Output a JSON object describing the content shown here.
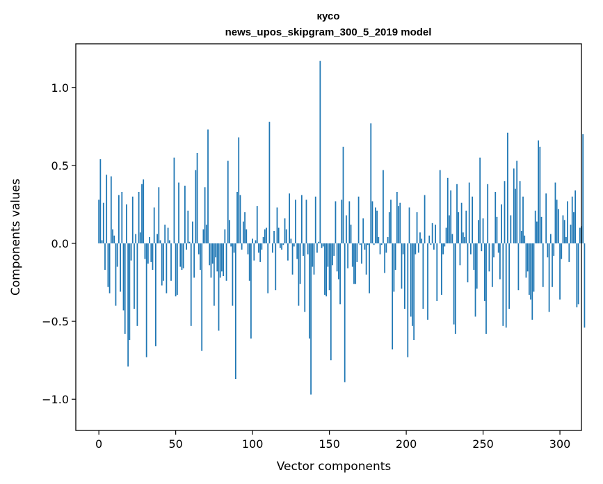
{
  "chart_data": {
    "type": "bar",
    "title": "кусо",
    "subtitle": "news_upos_skipgram_300_5_2019 model",
    "xlabel": "Vector components",
    "ylabel": "Components values",
    "xlim": [
      -15,
      314
    ],
    "ylim": [
      -1.2,
      1.28
    ],
    "xticks": [
      0,
      50,
      100,
      150,
      200,
      250,
      300
    ],
    "xtick_labels": [
      "0",
      "50",
      "100",
      "150",
      "200",
      "250",
      "300"
    ],
    "yticks": [
      -1.0,
      -0.5,
      0.0,
      0.5,
      1.0
    ],
    "ytick_labels": [
      "−1.0",
      "−0.5",
      "0.0",
      "0.5",
      "1.0"
    ],
    "bar_color": "#1f77b4",
    "grid": false,
    "values": [
      0.28,
      0.54,
      0.02,
      0.26,
      -0.17,
      0.44,
      -0.28,
      -0.32,
      0.43,
      0.09,
      0.05,
      -0.4,
      -0.15,
      0.31,
      -0.31,
      0.33,
      -0.43,
      -0.58,
      0.25,
      -0.79,
      -0.62,
      -0.11,
      0.3,
      -0.42,
      0.06,
      -0.53,
      0.33,
      0.07,
      0.38,
      0.41,
      -0.1,
      -0.73,
      -0.13,
      0.04,
      -0.12,
      -0.17,
      0.23,
      -0.66,
      0.06,
      0.36,
      0.02,
      -0.27,
      -0.24,
      0.12,
      -0.32,
      0.1,
      0.02,
      -0.24,
      0.0,
      0.55,
      -0.34,
      -0.33,
      0.39,
      -0.15,
      -0.17,
      -0.16,
      0.37,
      -0.04,
      0.21,
      0.01,
      -0.53,
      0.14,
      -0.22,
      0.47,
      0.58,
      -0.07,
      -0.17,
      -0.69,
      0.09,
      0.36,
      0.12,
      0.73,
      -0.14,
      -0.22,
      -0.13,
      -0.4,
      -0.09,
      -0.18,
      -0.56,
      -0.22,
      -0.18,
      -0.21,
      0.09,
      -0.24,
      0.53,
      0.15,
      -0.02,
      -0.4,
      -0.06,
      -0.87,
      0.33,
      0.68,
      0.31,
      -0.04,
      0.14,
      0.2,
      0.09,
      -0.07,
      -0.24,
      -0.61,
      0.03,
      -0.11,
      0.02,
      0.24,
      -0.06,
      -0.12,
      -0.04,
      0.04,
      0.09,
      0.1,
      -0.32,
      0.78,
      0.0,
      -0.06,
      0.08,
      -0.3,
      0.23,
      0.1,
      -0.03,
      -0.04,
      -0.01,
      0.16,
      0.09,
      -0.11,
      0.32,
      0.03,
      -0.2,
      -0.02,
      0.28,
      -0.1,
      -0.4,
      -0.26,
      0.31,
      -0.08,
      -0.44,
      0.28,
      -0.07,
      -0.61,
      -0.97,
      -0.15,
      -0.2,
      0.3,
      -0.06,
      0.01,
      1.17,
      -0.03,
      -0.02,
      -0.33,
      -0.34,
      -0.15,
      -0.3,
      -0.75,
      -0.14,
      -0.08,
      0.27,
      -0.18,
      -0.23,
      -0.39,
      0.28,
      0.62,
      -0.89,
      0.18,
      -0.16,
      0.27,
      0.12,
      -0.15,
      -0.26,
      -0.26,
      -0.12,
      0.3,
      -0.01,
      -0.13,
      0.16,
      -0.04,
      -0.2,
      -0.01,
      -0.32,
      0.77,
      0.27,
      -0.01,
      0.23,
      0.21,
      0.04,
      -0.07,
      -0.01,
      0.47,
      -0.19,
      -0.06,
      0.04,
      0.2,
      0.28,
      -0.68,
      -0.31,
      -0.17,
      0.33,
      0.24,
      0.26,
      -0.29,
      -0.07,
      -0.42,
      0.0,
      -0.73,
      0.23,
      -0.47,
      -0.53,
      -0.62,
      -0.07,
      0.2,
      -0.06,
      0.07,
      0.03,
      -0.42,
      0.31,
      0.0,
      -0.49,
      0.05,
      -0.01,
      0.13,
      -0.04,
      0.12,
      -0.37,
      0.0,
      0.47,
      -0.33,
      -0.07,
      -0.02,
      0.1,
      0.42,
      0.18,
      0.34,
      0.06,
      -0.52,
      -0.58,
      0.38,
      0.2,
      -0.14,
      0.26,
      0.07,
      0.04,
      0.21,
      -0.25,
      0.39,
      -0.07,
      0.3,
      -0.17,
      -0.47,
      -0.29,
      0.15,
      0.55,
      -0.05,
      0.16,
      -0.37,
      -0.58,
      0.38,
      -0.18,
      0.0,
      -0.28,
      -0.09,
      0.33,
      0.17,
      -0.06,
      -0.23,
      0.25,
      -0.53,
      0.4,
      -0.54,
      0.71,
      -0.42,
      0.18,
      0.0,
      0.48,
      0.35,
      0.53,
      -0.3,
      0.4,
      0.08,
      0.3,
      0.05,
      -0.22,
      -0.18,
      -0.33,
      -0.36,
      -0.49,
      -0.31,
      0.21,
      0.14,
      0.66,
      0.62,
      0.17,
      -0.28,
      0.0,
      0.32,
      -0.09,
      -0.44,
      0.06,
      -0.28,
      -0.08,
      0.39,
      0.28,
      0.22,
      -0.36,
      -0.1,
      0.18,
      0.15,
      0.04,
      0.27,
      -0.12,
      0.12,
      0.3,
      0.2,
      0.34,
      -0.41,
      -0.39,
      0.1,
      0.11,
      0.7,
      -0.54
    ]
  }
}
